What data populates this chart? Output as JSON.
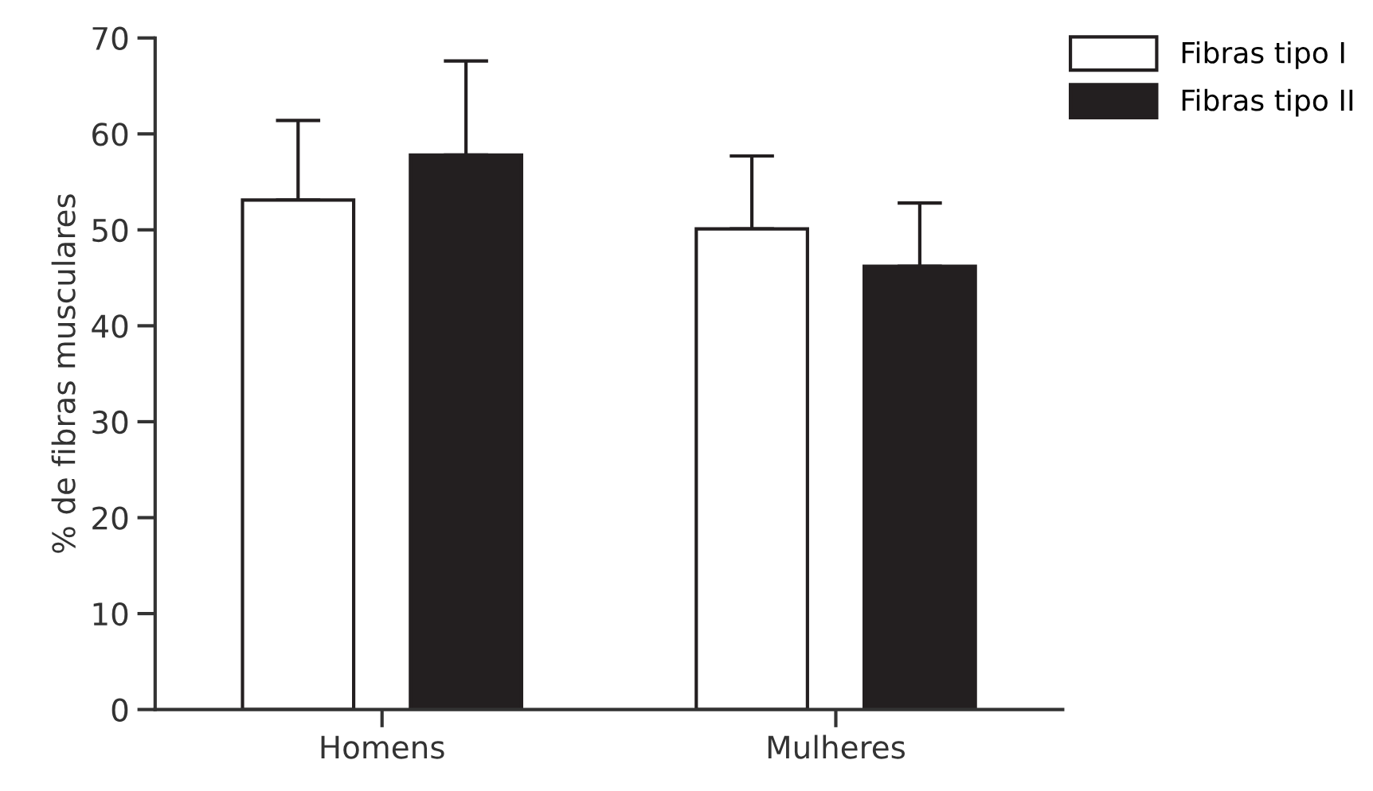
{
  "chart_data": {
    "type": "bar",
    "ylabel": "% de fibras musculares",
    "categories": [
      "Homens",
      "Mulheres"
    ],
    "series": [
      {
        "name": "Fibras tipo I",
        "color": "#ffffff",
        "values": [
          53.1,
          50.1
        ],
        "errors": [
          [
            53.1,
            61.4
          ],
          [
            50.1,
            57.7
          ]
        ]
      },
      {
        "name": "Fibras tipo II",
        "color": "#231f20",
        "values": [
          57.8,
          46.2
        ],
        "errors": [
          [
            57.8,
            67.6
          ],
          [
            46.2,
            52.8
          ]
        ]
      }
    ],
    "ylim": [
      0,
      70
    ],
    "yticks": [
      0,
      10,
      20,
      30,
      40,
      50,
      60,
      70
    ],
    "grid": false,
    "legend": "top right"
  }
}
